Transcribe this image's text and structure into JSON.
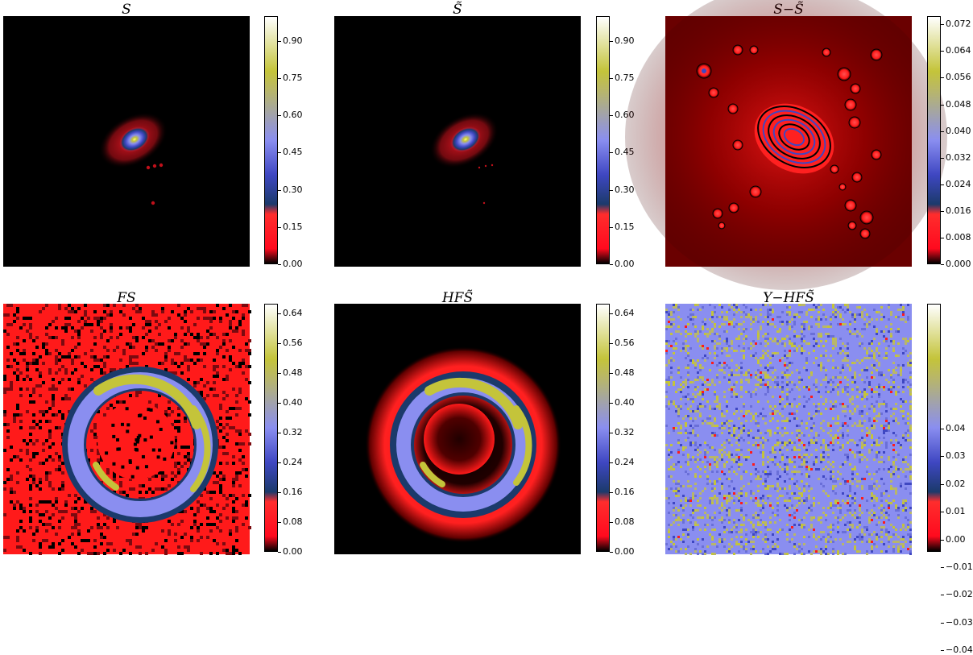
{
  "colors": {
    "map": [
      "#000000",
      "#ff0a1e",
      "#ff2d2d",
      "#1b3a6b",
      "#3f47c2",
      "#8a8ef0",
      "#b8b66a",
      "#c4c43a",
      "#ffffff"
    ]
  },
  "panels": [
    {
      "id": "s",
      "title": "S",
      "ticks": [
        "0.90",
        "0.75",
        "0.60",
        "0.45",
        "0.30",
        "0.15",
        "0.00"
      ]
    },
    {
      "id": "stilde",
      "title": "S̃",
      "ticks": [
        "0.90",
        "0.75",
        "0.60",
        "0.45",
        "0.30",
        "0.15",
        "0.00"
      ]
    },
    {
      "id": "diff",
      "title": "S−S̃",
      "ticks": [
        "0.072",
        "0.064",
        "0.056",
        "0.048",
        "0.040",
        "0.032",
        "0.024",
        "0.016",
        "0.008",
        "0.000"
      ]
    },
    {
      "id": "fs",
      "title": "FS",
      "ticks": [
        "0.64",
        "0.56",
        "0.48",
        "0.40",
        "0.32",
        "0.24",
        "0.16",
        "0.08",
        "0.00"
      ]
    },
    {
      "id": "hfs",
      "title": "HFS̃",
      "ticks": [
        "0.64",
        "0.56",
        "0.48",
        "0.40",
        "0.32",
        "0.24",
        "0.16",
        "0.08",
        "0.00"
      ]
    },
    {
      "id": "resid",
      "title": "Y−HFS̃",
      "ticks": [
        "0.04",
        "0.03",
        "0.02",
        "0.01",
        "0.00",
        "−0.01",
        "−0.02",
        "−0.03",
        "−0.04"
      ]
    }
  ]
}
